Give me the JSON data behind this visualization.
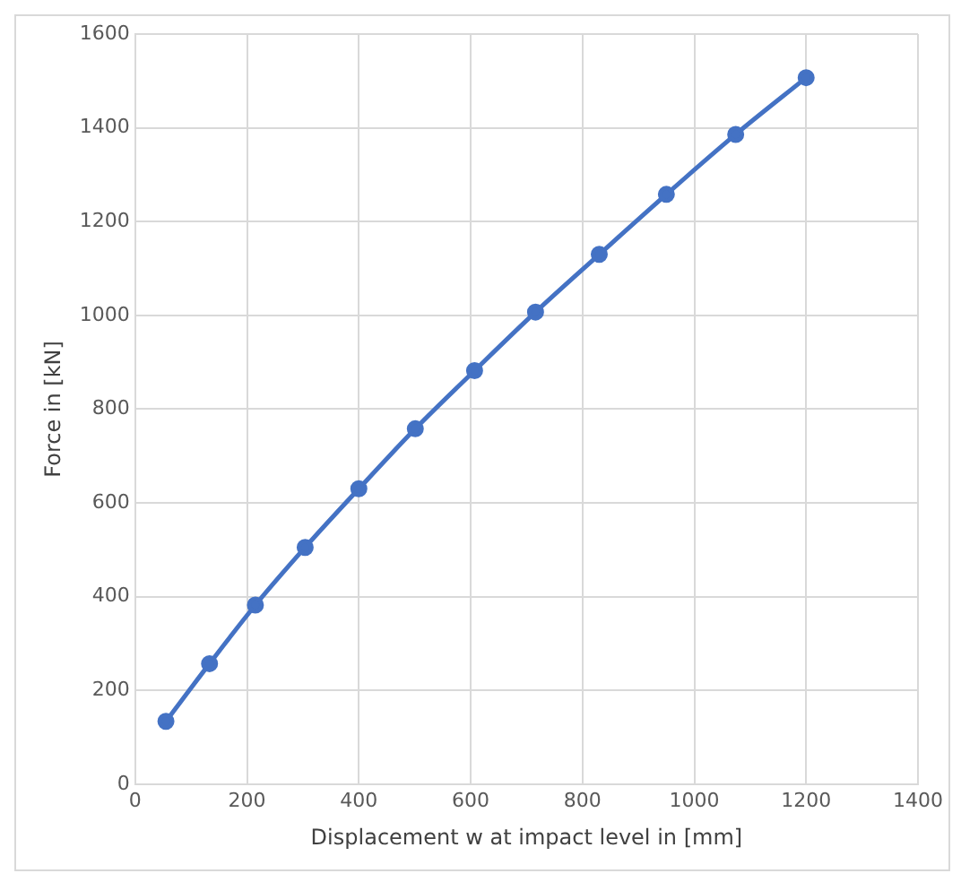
{
  "chart_data": {
    "type": "line",
    "xlabel": "Displacement w at impact level in [mm]",
    "ylabel": "Force in [kN]",
    "x": [
      55,
      133,
      215,
      304,
      400,
      501,
      607,
      716,
      830,
      950,
      1074,
      1200
    ],
    "series": [
      {
        "color": "#4472c4",
        "values": [
          134,
          257,
          382,
          505,
          630,
          758,
          882,
          1007,
          1130,
          1258,
          1386,
          1507
        ]
      }
    ],
    "xlim": [
      0,
      1400
    ],
    "xticks": [
      0,
      200,
      400,
      600,
      800,
      1000,
      1200,
      1400
    ],
    "ylim": [
      0,
      1600
    ],
    "yticks": [
      0,
      200,
      400,
      600,
      800,
      1000,
      1200,
      1400,
      1600
    ],
    "grid": true,
    "legend": false,
    "marker": "circle",
    "line_style": "solid"
  }
}
